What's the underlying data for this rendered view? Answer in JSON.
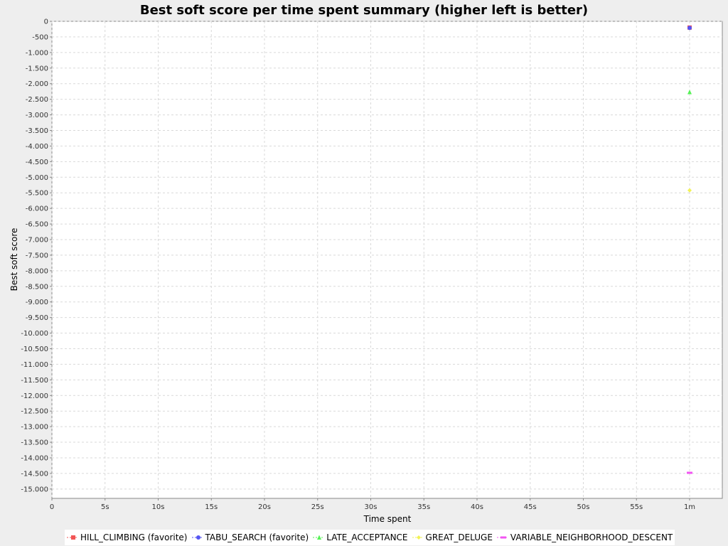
{
  "chart_data": {
    "type": "scatter",
    "title": "Best soft score per time spent summary (higher left is better)",
    "xlabel": "Time spent",
    "ylabel": "Best soft score",
    "xlim": [
      0,
      63
    ],
    "ylim": [
      -15300,
      0
    ],
    "x_ticks": [
      {
        "value": 0,
        "label": "0"
      },
      {
        "value": 5,
        "label": "5s"
      },
      {
        "value": 10,
        "label": "10s"
      },
      {
        "value": 15,
        "label": "15s"
      },
      {
        "value": 20,
        "label": "20s"
      },
      {
        "value": 25,
        "label": "25s"
      },
      {
        "value": 30,
        "label": "30s"
      },
      {
        "value": 35,
        "label": "35s"
      },
      {
        "value": 40,
        "label": "40s"
      },
      {
        "value": 45,
        "label": "45s"
      },
      {
        "value": 50,
        "label": "50s"
      },
      {
        "value": 55,
        "label": "55s"
      },
      {
        "value": 60,
        "label": "1m"
      }
    ],
    "y_ticks": [
      {
        "value": 0,
        "label": "0"
      },
      {
        "value": -500,
        "label": "-500"
      },
      {
        "value": -1000,
        "label": "-1.000"
      },
      {
        "value": -1500,
        "label": "-1.500"
      },
      {
        "value": -2000,
        "label": "-2.000"
      },
      {
        "value": -2500,
        "label": "-2.500"
      },
      {
        "value": -3000,
        "label": "-3.000"
      },
      {
        "value": -3500,
        "label": "-3.500"
      },
      {
        "value": -4000,
        "label": "-4.000"
      },
      {
        "value": -4500,
        "label": "-4.500"
      },
      {
        "value": -5000,
        "label": "-5.000"
      },
      {
        "value": -5500,
        "label": "-5.500"
      },
      {
        "value": -6000,
        "label": "-6.000"
      },
      {
        "value": -6500,
        "label": "-6.500"
      },
      {
        "value": -7000,
        "label": "-7.000"
      },
      {
        "value": -7500,
        "label": "-7.500"
      },
      {
        "value": -8000,
        "label": "-8.000"
      },
      {
        "value": -8500,
        "label": "-8.500"
      },
      {
        "value": -9000,
        "label": "-9.000"
      },
      {
        "value": -9500,
        "label": "-9.500"
      },
      {
        "value": -10000,
        "label": "-10.000"
      },
      {
        "value": -10500,
        "label": "-10.500"
      },
      {
        "value": -11000,
        "label": "-11.000"
      },
      {
        "value": -11500,
        "label": "-11.500"
      },
      {
        "value": -12000,
        "label": "-12.000"
      },
      {
        "value": -12500,
        "label": "-12.500"
      },
      {
        "value": -13000,
        "label": "-13.000"
      },
      {
        "value": -13500,
        "label": "-13.500"
      },
      {
        "value": -14000,
        "label": "-14.000"
      },
      {
        "value": -14500,
        "label": "-14.500"
      },
      {
        "value": -15000,
        "label": "-15.000"
      }
    ],
    "grid": true,
    "legend_position": "bottom",
    "series": [
      {
        "name": "HILL_CLIMBING (favorite)",
        "color": "#f25555",
        "marker": "square",
        "points": [
          {
            "x": 60,
            "y": -200
          }
        ]
      },
      {
        "name": "TABU_SEARCH (favorite)",
        "color": "#5555f2",
        "marker": "circle",
        "points": [
          {
            "x": 60,
            "y": -210
          }
        ]
      },
      {
        "name": "LATE_ACCEPTANCE",
        "color": "#55f255",
        "marker": "triangle",
        "points": [
          {
            "x": 60,
            "y": -2270
          }
        ]
      },
      {
        "name": "GREAT_DELUGE",
        "color": "#f2f255",
        "marker": "diamond",
        "points": [
          {
            "x": 60,
            "y": -5420
          }
        ]
      },
      {
        "name": "VARIABLE_NEIGHBORHOOD_DESCENT",
        "color": "#f255f2",
        "marker": "rect",
        "points": [
          {
            "x": 60,
            "y": -14480
          }
        ]
      }
    ]
  }
}
